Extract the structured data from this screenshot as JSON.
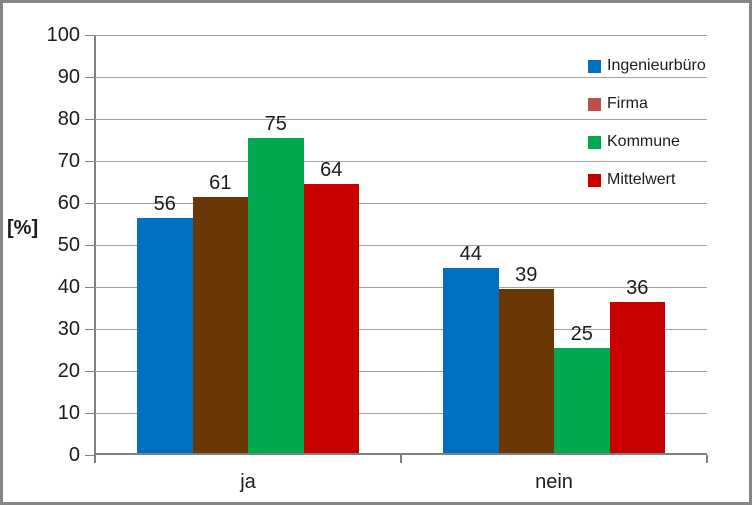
{
  "chart_data": {
    "type": "bar",
    "title": "",
    "xlabel": "",
    "ylabel": "[%]",
    "ylim": [
      0,
      100
    ],
    "ytick_step": 10,
    "grid": true,
    "data_labels": true,
    "legend_position": "top-right-inside",
    "categories": [
      "ja",
      "nein"
    ],
    "series": [
      {
        "name": "Ingenieurbüro",
        "values": [
          56,
          44
        ],
        "bar_color": "#0071C1",
        "legend_color": "#0071C1"
      },
      {
        "name": "Firma",
        "values": [
          61,
          39
        ],
        "bar_color": "#6A3805",
        "legend_color": "#BE504C"
      },
      {
        "name": "Kommune",
        "values": [
          75,
          25
        ],
        "bar_color": "#00A84F",
        "legend_color": "#00A84F"
      },
      {
        "name": "Mittelwert",
        "values": [
          64,
          36
        ],
        "bar_color": "#C80000",
        "legend_color": "#C80000"
      }
    ]
  },
  "colors": {
    "gridline": "#A3A3A3",
    "axis": "#808080",
    "frame_border": "#858585",
    "text": "#1C1C1C",
    "background": "#FFFFFF"
  }
}
